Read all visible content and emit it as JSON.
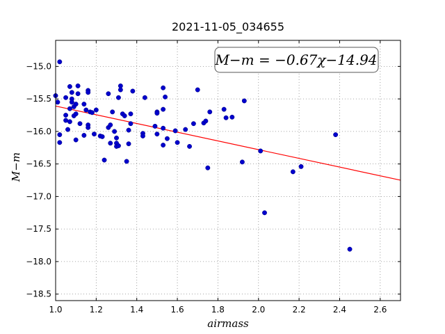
{
  "chart_data": {
    "type": "scatter",
    "title": "2021-11-05_034655",
    "xlabel": "airmass",
    "ylabel": "M−m",
    "xlim": [
      1.0,
      2.7
    ],
    "ylim": [
      -18.6,
      -14.6
    ],
    "y_inverted": true,
    "x_ticks": [
      1.0,
      1.2,
      1.4,
      1.6,
      1.8,
      2.0,
      2.2,
      2.4,
      2.6
    ],
    "x_tick_labels": [
      "1.0",
      "1.2",
      "1.4",
      "1.6",
      "1.8",
      "2.0",
      "2.2",
      "2.4",
      "2.6"
    ],
    "y_ticks": [
      -15.0,
      -15.5,
      -16.0,
      -16.5,
      -17.0,
      -17.5,
      -18.0,
      -18.5
    ],
    "y_tick_labels": [
      "−15.0",
      "−15.5",
      "−16.0",
      "−16.5",
      "−17.0",
      "−17.5",
      "−18.0",
      "−18.5"
    ],
    "grid": true,
    "annotation": "M−m = −0.67χ−14.94",
    "fit": {
      "slope": -0.67,
      "intercept": -14.94,
      "color": "#ff0000"
    },
    "marker_color": "#0000cc",
    "points": [
      [
        1.0,
        -15.45
      ],
      [
        1.01,
        -15.55
      ],
      [
        1.02,
        -16.05
      ],
      [
        1.02,
        -16.17
      ],
      [
        1.02,
        -14.93
      ],
      [
        1.05,
        -15.48
      ],
      [
        1.05,
        -15.75
      ],
      [
        1.05,
        -15.83
      ],
      [
        1.06,
        -15.97
      ],
      [
        1.07,
        -15.31
      ],
      [
        1.07,
        -15.65
      ],
      [
        1.07,
        -15.85
      ],
      [
        1.08,
        -15.4
      ],
      [
        1.08,
        -15.5
      ],
      [
        1.08,
        -15.55
      ],
      [
        1.09,
        -15.76
      ],
      [
        1.09,
        -15.62
      ],
      [
        1.1,
        -15.58
      ],
      [
        1.1,
        -15.73
      ],
      [
        1.1,
        -16.13
      ],
      [
        1.11,
        -15.3
      ],
      [
        1.11,
        -15.42
      ],
      [
        1.12,
        -15.88
      ],
      [
        1.14,
        -15.58
      ],
      [
        1.14,
        -16.06
      ],
      [
        1.15,
        -15.67
      ],
      [
        1.16,
        -15.37
      ],
      [
        1.16,
        -15.4
      ],
      [
        1.16,
        -15.9
      ],
      [
        1.16,
        -15.94
      ],
      [
        1.17,
        -15.7
      ],
      [
        1.18,
        -15.71
      ],
      [
        1.19,
        -16.04
      ],
      [
        1.2,
        -15.67
      ],
      [
        1.22,
        -16.07
      ],
      [
        1.23,
        -16.08
      ],
      [
        1.24,
        -16.44
      ],
      [
        1.26,
        -15.42
      ],
      [
        1.26,
        -15.94
      ],
      [
        1.27,
        -16.18
      ],
      [
        1.27,
        -15.9
      ],
      [
        1.28,
        -15.7
      ],
      [
        1.29,
        -16.0
      ],
      [
        1.3,
        -16.1
      ],
      [
        1.3,
        -16.18
      ],
      [
        1.3,
        -16.23
      ],
      [
        1.31,
        -15.48
      ],
      [
        1.31,
        -16.22
      ],
      [
        1.32,
        -15.3
      ],
      [
        1.32,
        -15.36
      ],
      [
        1.33,
        -15.73
      ],
      [
        1.34,
        -15.76
      ],
      [
        1.35,
        -16.46
      ],
      [
        1.36,
        -16.19
      ],
      [
        1.36,
        -15.98
      ],
      [
        1.37,
        -15.73
      ],
      [
        1.37,
        -15.88
      ],
      [
        1.38,
        -15.38
      ],
      [
        1.43,
        -16.03
      ],
      [
        1.43,
        -16.07
      ],
      [
        1.44,
        -15.48
      ],
      [
        1.49,
        -15.92
      ],
      [
        1.5,
        -15.7
      ],
      [
        1.5,
        -15.72
      ],
      [
        1.5,
        -16.04
      ],
      [
        1.53,
        -15.33
      ],
      [
        1.53,
        -15.66
      ],
      [
        1.53,
        -15.95
      ],
      [
        1.53,
        -16.21
      ],
      [
        1.54,
        -15.47
      ],
      [
        1.55,
        -16.11
      ],
      [
        1.59,
        -15.99
      ],
      [
        1.6,
        -16.17
      ],
      [
        1.64,
        -15.97
      ],
      [
        1.66,
        -16.23
      ],
      [
        1.68,
        -15.88
      ],
      [
        1.7,
        -15.36
      ],
      [
        1.73,
        -15.87
      ],
      [
        1.74,
        -15.84
      ],
      [
        1.75,
        -16.56
      ],
      [
        1.76,
        -15.7
      ],
      [
        1.83,
        -15.66
      ],
      [
        1.84,
        -15.79
      ],
      [
        1.87,
        -15.78
      ],
      [
        1.92,
        -16.47
      ],
      [
        1.93,
        -15.53
      ],
      [
        2.01,
        -16.3
      ],
      [
        2.03,
        -17.25
      ],
      [
        2.17,
        -16.62
      ],
      [
        2.21,
        -16.54
      ],
      [
        2.38,
        -16.05
      ],
      [
        2.45,
        -17.81
      ]
    ]
  }
}
